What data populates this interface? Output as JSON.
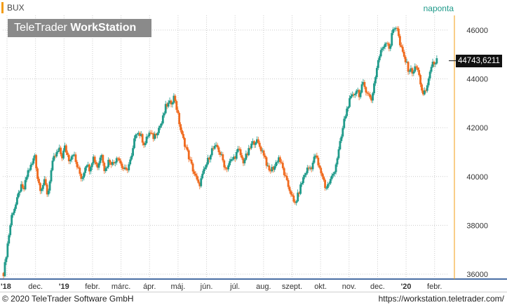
{
  "header": {
    "symbol": "BUX",
    "period": "naponta",
    "brand_regular": "TeleTrader ",
    "brand_bold": "WorkStation"
  },
  "last_price_label": "44743,6211",
  "footer": {
    "copyright": "© 2020 TeleTrader Software GmbH",
    "url": "https://workstation.teletrader.com/"
  },
  "colors": {
    "up": "#1f9a8a",
    "down": "#f06a1e",
    "grid": "#cccccc",
    "axis_line": "#4a6fa5",
    "marker": "#f39c12"
  },
  "chart_data": {
    "type": "candlestick",
    "title": "BUX",
    "period": "naponta",
    "ylim": [
      35800,
      46600
    ],
    "y_ticks": [
      36000,
      38000,
      40000,
      42000,
      44000,
      46000
    ],
    "y_tick_labels": [
      "36000",
      "38000",
      "40000",
      "42000",
      "44000",
      "46000"
    ],
    "x_ticks": [
      {
        "label": "'18",
        "bold": true,
        "month": 0
      },
      {
        "label": "dec.",
        "bold": false,
        "month": 1
      },
      {
        "label": "'19",
        "bold": true,
        "month": 2
      },
      {
        "label": "febr.",
        "bold": false,
        "month": 3
      },
      {
        "label": "márc.",
        "bold": false,
        "month": 4
      },
      {
        "label": "ápr.",
        "bold": false,
        "month": 5
      },
      {
        "label": "máj.",
        "bold": false,
        "month": 6
      },
      {
        "label": "jún.",
        "bold": false,
        "month": 7
      },
      {
        "label": "júl.",
        "bold": false,
        "month": 8
      },
      {
        "label": "aug.",
        "bold": false,
        "month": 9
      },
      {
        "label": "szept.",
        "bold": false,
        "month": 10
      },
      {
        "label": "okt.",
        "bold": false,
        "month": 11
      },
      {
        "label": "nov.",
        "bold": false,
        "month": 12
      },
      {
        "label": "dec.",
        "bold": false,
        "month": 13
      },
      {
        "label": "'20",
        "bold": true,
        "month": 14
      },
      {
        "label": "febr.",
        "bold": false,
        "month": 15
      }
    ],
    "last_value": 44743.6211,
    "grid": true,
    "close_path": [
      [
        0.0,
        36050
      ],
      [
        0.05,
        36400
      ],
      [
        0.15,
        37300
      ],
      [
        0.3,
        38500
      ],
      [
        0.45,
        38900
      ],
      [
        0.6,
        39600
      ],
      [
        0.7,
        39400
      ],
      [
        0.85,
        40200
      ],
      [
        1.0,
        40500
      ],
      [
        1.1,
        40900
      ],
      [
        1.2,
        39900
      ],
      [
        1.3,
        39500
      ],
      [
        1.45,
        39800
      ],
      [
        1.55,
        39200
      ],
      [
        1.65,
        40100
      ],
      [
        1.75,
        40700
      ],
      [
        1.85,
        40900
      ],
      [
        1.95,
        41100
      ],
      [
        2.05,
        40800
      ],
      [
        2.15,
        41200
      ],
      [
        2.3,
        40700
      ],
      [
        2.45,
        41000
      ],
      [
        2.55,
        40500
      ],
      [
        2.65,
        40200
      ],
      [
        2.75,
        39900
      ],
      [
        2.9,
        40600
      ],
      [
        3.0,
        40300
      ],
      [
        3.15,
        40800
      ],
      [
        3.3,
        40400
      ],
      [
        3.45,
        41000
      ],
      [
        3.55,
        40200
      ],
      [
        3.7,
        40700
      ],
      [
        3.85,
        40500
      ],
      [
        4.0,
        40900
      ],
      [
        4.15,
        40400
      ],
      [
        4.3,
        40200
      ],
      [
        4.5,
        40800
      ],
      [
        4.65,
        41900
      ],
      [
        4.8,
        41700
      ],
      [
        4.95,
        41300
      ],
      [
        5.1,
        41800
      ],
      [
        5.25,
        41600
      ],
      [
        5.4,
        41900
      ],
      [
        5.55,
        42200
      ],
      [
        5.7,
        42900
      ],
      [
        5.85,
        43000
      ],
      [
        6.0,
        43300
      ],
      [
        6.1,
        42600
      ],
      [
        6.25,
        41700
      ],
      [
        6.4,
        41200
      ],
      [
        6.55,
        40600
      ],
      [
        6.7,
        40100
      ],
      [
        6.85,
        39600
      ],
      [
        7.0,
        40100
      ],
      [
        7.15,
        40600
      ],
      [
        7.3,
        41100
      ],
      [
        7.5,
        41200
      ],
      [
        7.65,
        40800
      ],
      [
        7.8,
        40300
      ],
      [
        7.95,
        40600
      ],
      [
        8.1,
        40800
      ],
      [
        8.25,
        41100
      ],
      [
        8.4,
        40600
      ],
      [
        8.55,
        40900
      ],
      [
        8.7,
        41300
      ],
      [
        8.85,
        41500
      ],
      [
        9.0,
        41200
      ],
      [
        9.15,
        40900
      ],
      [
        9.3,
        40200
      ],
      [
        9.5,
        40400
      ],
      [
        9.65,
        40800
      ],
      [
        9.8,
        40300
      ],
      [
        9.95,
        39700
      ],
      [
        10.1,
        39300
      ],
      [
        10.2,
        38800
      ],
      [
        10.35,
        39300
      ],
      [
        10.5,
        39900
      ],
      [
        10.65,
        40300
      ],
      [
        10.8,
        40400
      ],
      [
        10.95,
        40900
      ],
      [
        11.05,
        40400
      ],
      [
        11.2,
        40000
      ],
      [
        11.3,
        39500
      ],
      [
        11.45,
        39800
      ],
      [
        11.6,
        40200
      ],
      [
        11.75,
        41000
      ],
      [
        11.85,
        41600
      ],
      [
        11.95,
        42300
      ],
      [
        12.1,
        43000
      ],
      [
        12.25,
        43300
      ],
      [
        12.4,
        43600
      ],
      [
        12.5,
        43300
      ],
      [
        12.6,
        43800
      ],
      [
        12.75,
        43500
      ],
      [
        12.9,
        43100
      ],
      [
        13.0,
        43800
      ],
      [
        13.15,
        44800
      ],
      [
        13.3,
        45300
      ],
      [
        13.45,
        45600
      ],
      [
        13.55,
        45200
      ],
      [
        13.65,
        46000
      ],
      [
        13.8,
        46200
      ],
      [
        13.9,
        45400
      ],
      [
        14.05,
        44900
      ],
      [
        14.2,
        44400
      ],
      [
        14.35,
        44300
      ],
      [
        14.5,
        44500
      ],
      [
        14.6,
        44000
      ],
      [
        14.72,
        43300
      ],
      [
        14.85,
        43600
      ],
      [
        14.95,
        44300
      ],
      [
        15.1,
        44700
      ],
      [
        15.2,
        44750
      ]
    ]
  }
}
